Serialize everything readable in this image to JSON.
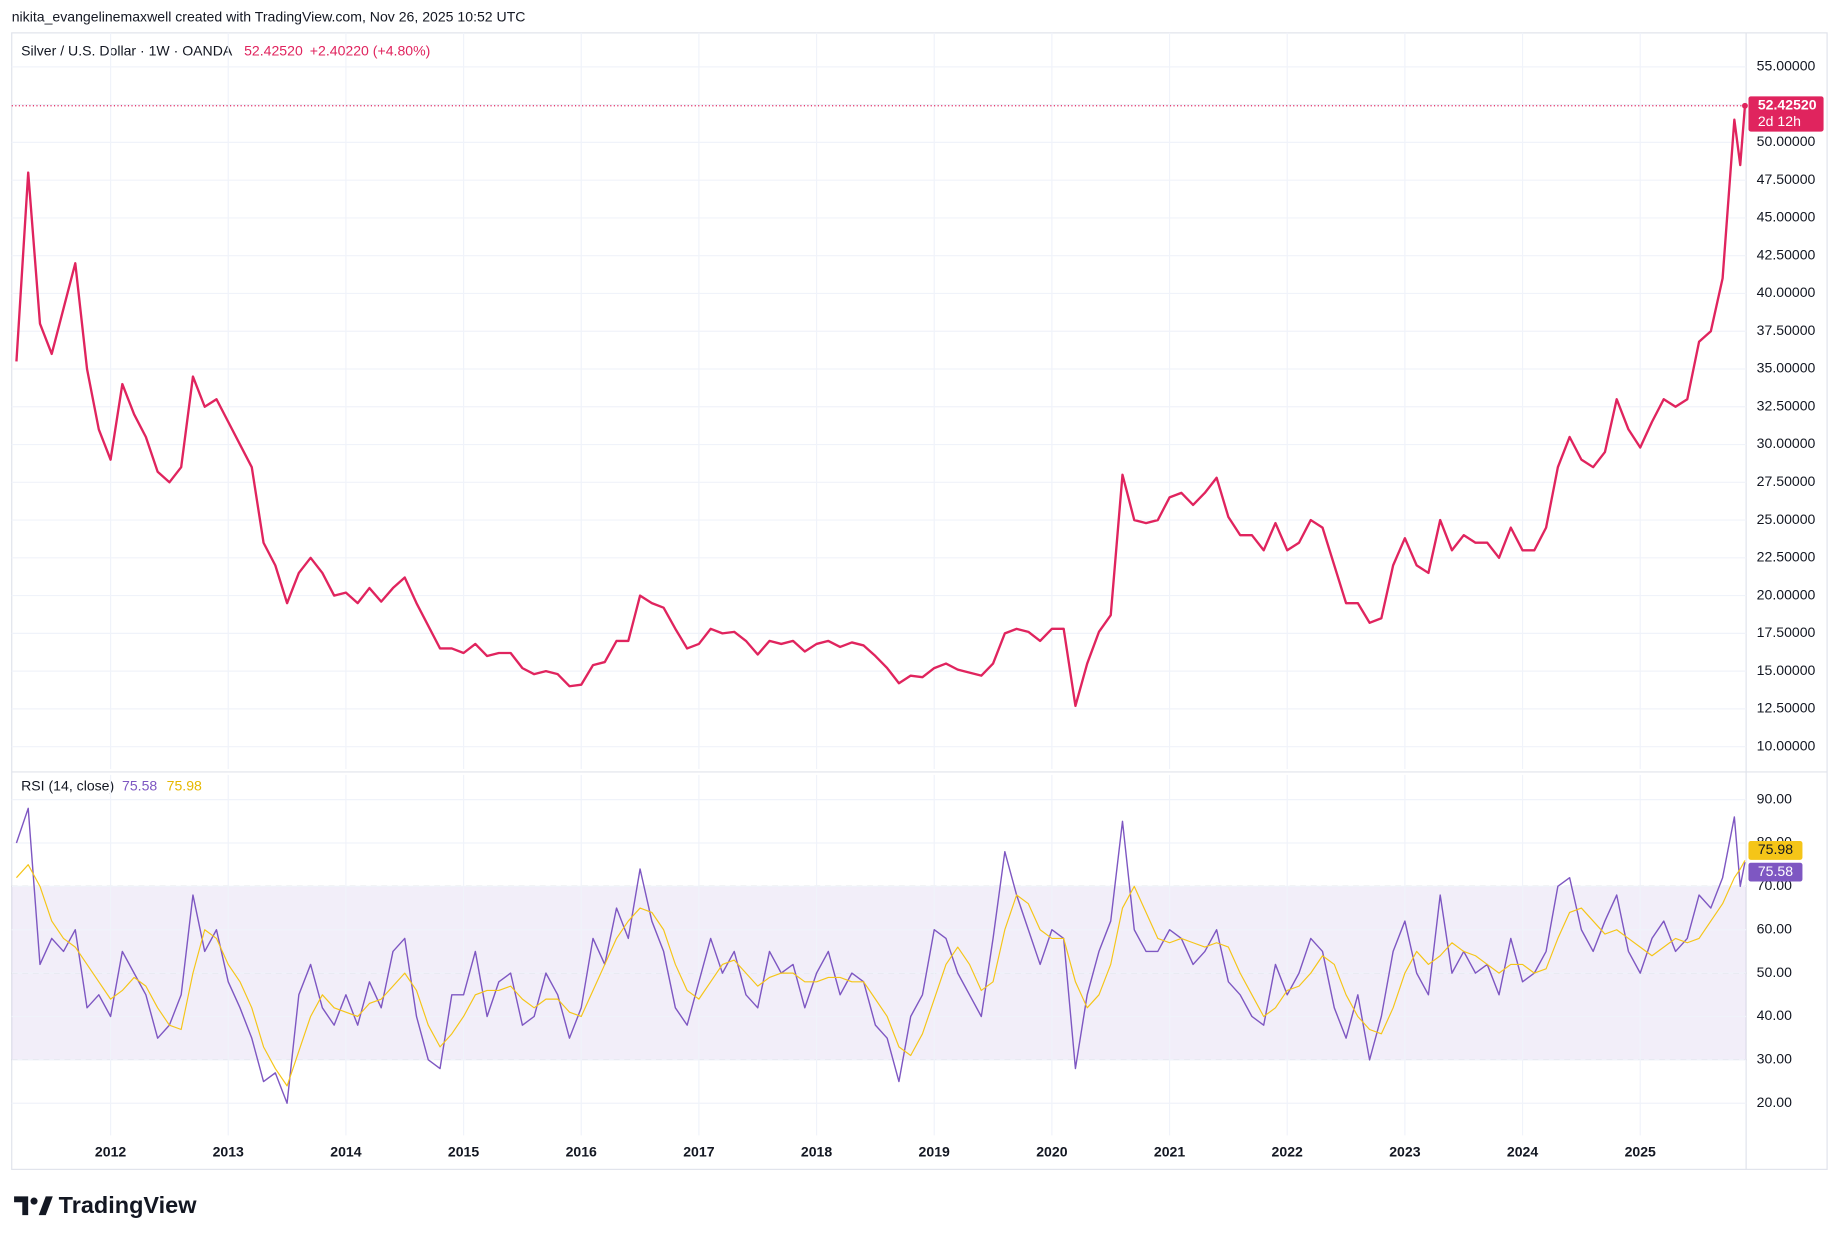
{
  "header": {
    "credit": "nikita_evangelinemaxwell created with TradingView.com, Nov 26, 2025 10:52 UTC"
  },
  "brand": "TradingView",
  "chart_data": [
    {
      "type": "line",
      "legend": {
        "symbol": "Silver / U.S. Dollar · 1W · OANDA",
        "change": "+2.40220 (+4.80%)"
      },
      "last_label": "52.42520",
      "countdown": "2d 12h",
      "x": [
        2011.2,
        2011.3,
        2011.4,
        2011.5,
        2011.6,
        2011.7,
        2011.8,
        2011.9,
        2012.0,
        2012.1,
        2012.2,
        2012.3,
        2012.4,
        2012.5,
        2012.6,
        2012.7,
        2012.8,
        2012.9,
        2013.0,
        2013.1,
        2013.2,
        2013.3,
        2013.4,
        2013.5,
        2013.6,
        2013.7,
        2013.8,
        2013.9,
        2014.0,
        2014.1,
        2014.2,
        2014.3,
        2014.4,
        2014.5,
        2014.6,
        2014.7,
        2014.8,
        2014.9,
        2015.0,
        2015.1,
        2015.2,
        2015.3,
        2015.4,
        2015.5,
        2015.6,
        2015.7,
        2015.8,
        2015.9,
        2016.0,
        2016.1,
        2016.2,
        2016.3,
        2016.4,
        2016.5,
        2016.6,
        2016.7,
        2016.8,
        2016.9,
        2017.0,
        2017.1,
        2017.2,
        2017.3,
        2017.4,
        2017.5,
        2017.6,
        2017.7,
        2017.8,
        2017.9,
        2018.0,
        2018.1,
        2018.2,
        2018.3,
        2018.4,
        2018.5,
        2018.6,
        2018.7,
        2018.8,
        2018.9,
        2019.0,
        2019.1,
        2019.2,
        2019.3,
        2019.4,
        2019.5,
        2019.6,
        2019.7,
        2019.8,
        2019.9,
        2020.0,
        2020.1,
        2020.2,
        2020.3,
        2020.4,
        2020.5,
        2020.6,
        2020.7,
        2020.8,
        2020.9,
        2021.0,
        2021.1,
        2021.2,
        2021.3,
        2021.4,
        2021.5,
        2021.6,
        2021.7,
        2021.8,
        2021.9,
        2022.0,
        2022.1,
        2022.2,
        2022.3,
        2022.4,
        2022.5,
        2022.6,
        2022.7,
        2022.8,
        2022.9,
        2023.0,
        2023.1,
        2023.2,
        2023.3,
        2023.4,
        2023.5,
        2023.6,
        2023.7,
        2023.8,
        2023.9,
        2024.0,
        2024.1,
        2024.2,
        2024.3,
        2024.4,
        2024.5,
        2024.6,
        2024.7,
        2024.8,
        2024.9,
        2025.0,
        2025.1,
        2025.2,
        2025.3,
        2025.4,
        2025.5,
        2025.6,
        2025.7,
        2025.8,
        2025.85,
        2025.89
      ],
      "series": [
        {
          "name": "Silver / U.S. Dollar",
          "color": "#e0245e",
          "values": [
            35.5,
            48,
            38,
            36,
            39,
            42,
            35,
            31,
            29,
            34,
            32,
            30.5,
            28.2,
            27.5,
            28.5,
            34.5,
            32.5,
            33,
            31.5,
            30,
            28.5,
            23.5,
            22,
            19.5,
            21.5,
            22.5,
            21.5,
            20,
            20.2,
            19.5,
            20.5,
            19.6,
            20.5,
            21.2,
            19.5,
            18,
            16.5,
            16.5,
            16.2,
            16.8,
            16,
            16.2,
            16.2,
            15.2,
            14.8,
            15,
            14.8,
            14,
            14.1,
            15.4,
            15.6,
            17,
            17,
            20,
            19.5,
            19.2,
            17.8,
            16.5,
            16.8,
            17.8,
            17.5,
            17.6,
            17,
            16.1,
            17,
            16.8,
            17,
            16.3,
            16.8,
            17,
            16.6,
            16.9,
            16.7,
            16,
            15.2,
            14.2,
            14.7,
            14.6,
            15.2,
            15.5,
            15.1,
            14.9,
            14.7,
            15.5,
            17.5,
            17.8,
            17.6,
            17,
            17.8,
            17.8,
            12.7,
            15.5,
            17.6,
            18.7,
            28,
            25,
            24.8,
            25,
            26.5,
            26.8,
            26,
            26.8,
            27.8,
            25.2,
            24,
            24,
            23,
            24.8,
            23,
            23.5,
            25,
            24.5,
            22,
            19.5,
            19.5,
            18.2,
            18.5,
            22,
            23.8,
            22,
            21.5,
            25,
            23,
            24,
            23.5,
            23.5,
            22.5,
            24.5,
            23,
            23,
            24.5,
            28.5,
            30.5,
            29,
            28.5,
            29.5,
            33,
            31,
            29.8,
            31.5,
            33,
            32.5,
            33,
            36.8,
            37.5,
            41,
            51.5,
            48.5,
            52.4252
          ]
        }
      ],
      "xlim": [
        2011.16,
        2025.9
      ],
      "xticks": [
        2012,
        2013,
        2014,
        2015,
        2016,
        2017,
        2018,
        2019,
        2020,
        2021,
        2022,
        2023,
        2024,
        2025
      ],
      "ylim": [
        8.52,
        57.25
      ],
      "yticks": [
        {
          "value": 10,
          "label": "10.00000"
        },
        {
          "value": 12.5,
          "label": "12.50000"
        },
        {
          "value": 15,
          "label": "15.00000"
        },
        {
          "value": 17.5,
          "label": "17.50000"
        },
        {
          "value": 20,
          "label": "20.00000"
        },
        {
          "value": 22.5,
          "label": "22.50000"
        },
        {
          "value": 25,
          "label": "25.00000"
        },
        {
          "value": 27.5,
          "label": "27.50000"
        },
        {
          "value": 30,
          "label": "30.00000"
        },
        {
          "value": 32.5,
          "label": "32.50000"
        },
        {
          "value": 35,
          "label": "35.00000"
        },
        {
          "value": 37.5,
          "label": "37.50000"
        },
        {
          "value": 40,
          "label": "40.00000"
        },
        {
          "value": 42.5,
          "label": "42.50000"
        },
        {
          "value": 45,
          "label": "45.00000"
        },
        {
          "value": 47.5,
          "label": "47.50000"
        },
        {
          "value": 50,
          "label": "50.00000"
        },
        {
          "value": 52.5,
          "label": "52.50000"
        },
        {
          "value": 55,
          "label": "55.00000"
        }
      ],
      "grid": true
    },
    {
      "type": "line",
      "legend": {
        "title": "RSI (14, close)"
      },
      "x": [
        2011.2,
        2011.3,
        2011.4,
        2011.5,
        2011.6,
        2011.7,
        2011.8,
        2011.9,
        2012.0,
        2012.1,
        2012.2,
        2012.3,
        2012.4,
        2012.5,
        2012.6,
        2012.7,
        2012.8,
        2012.9,
        2013.0,
        2013.1,
        2013.2,
        2013.3,
        2013.4,
        2013.5,
        2013.6,
        2013.7,
        2013.8,
        2013.9,
        2014.0,
        2014.1,
        2014.2,
        2014.3,
        2014.4,
        2014.5,
        2014.6,
        2014.7,
        2014.8,
        2014.9,
        2015.0,
        2015.1,
        2015.2,
        2015.3,
        2015.4,
        2015.5,
        2015.6,
        2015.7,
        2015.8,
        2015.9,
        2016.0,
        2016.1,
        2016.2,
        2016.3,
        2016.4,
        2016.5,
        2016.6,
        2016.7,
        2016.8,
        2016.9,
        2017.0,
        2017.1,
        2017.2,
        2017.3,
        2017.4,
        2017.5,
        2017.6,
        2017.7,
        2017.8,
        2017.9,
        2018.0,
        2018.1,
        2018.2,
        2018.3,
        2018.4,
        2018.5,
        2018.6,
        2018.7,
        2018.8,
        2018.9,
        2019.0,
        2019.1,
        2019.2,
        2019.3,
        2019.4,
        2019.5,
        2019.6,
        2019.7,
        2019.8,
        2019.9,
        2020.0,
        2020.1,
        2020.2,
        2020.3,
        2020.4,
        2020.5,
        2020.6,
        2020.7,
        2020.8,
        2020.9,
        2021.0,
        2021.1,
        2021.2,
        2021.3,
        2021.4,
        2021.5,
        2021.6,
        2021.7,
        2021.8,
        2021.9,
        2022.0,
        2022.1,
        2022.2,
        2022.3,
        2022.4,
        2022.5,
        2022.6,
        2022.7,
        2022.8,
        2022.9,
        2023.0,
        2023.1,
        2023.2,
        2023.3,
        2023.4,
        2023.5,
        2023.6,
        2023.7,
        2023.8,
        2023.9,
        2024.0,
        2024.1,
        2024.2,
        2024.3,
        2024.4,
        2024.5,
        2024.6,
        2024.7,
        2024.8,
        2024.9,
        2025.0,
        2025.1,
        2025.2,
        2025.3,
        2025.4,
        2025.5,
        2025.6,
        2025.7,
        2025.8,
        2025.85,
        2025.89
      ],
      "series": [
        {
          "name": "RSI",
          "color": "#7e57c2",
          "last_label": "75.58",
          "values": [
            80,
            88,
            52,
            58,
            55,
            60,
            42,
            45,
            40,
            55,
            50,
            45,
            35,
            38,
            45,
            68,
            55,
            60,
            48,
            42,
            35,
            25,
            27,
            20,
            45,
            52,
            42,
            38,
            45,
            38,
            48,
            42,
            55,
            58,
            40,
            30,
            28,
            45,
            45,
            55,
            40,
            48,
            50,
            38,
            40,
            50,
            45,
            35,
            42,
            58,
            52,
            65,
            58,
            74,
            62,
            55,
            42,
            38,
            48,
            58,
            50,
            55,
            45,
            42,
            55,
            50,
            52,
            42,
            50,
            55,
            45,
            50,
            48,
            38,
            35,
            25,
            40,
            45,
            60,
            58,
            50,
            45,
            40,
            58,
            78,
            68,
            60,
            52,
            60,
            58,
            28,
            45,
            55,
            62,
            85,
            60,
            55,
            55,
            60,
            58,
            52,
            55,
            60,
            48,
            45,
            40,
            38,
            52,
            45,
            50,
            58,
            55,
            42,
            35,
            45,
            30,
            40,
            55,
            62,
            50,
            45,
            68,
            50,
            55,
            50,
            52,
            45,
            58,
            48,
            50,
            55,
            70,
            72,
            60,
            55,
            62,
            68,
            55,
            50,
            58,
            62,
            55,
            58,
            68,
            65,
            72,
            86,
            70,
            75.58
          ]
        },
        {
          "name": "RSI-based MA",
          "color": "#f5c518",
          "last_label": "75.98",
          "values": [
            72,
            75,
            70,
            62,
            58,
            56,
            52,
            48,
            44,
            46,
            49,
            47,
            42,
            38,
            37,
            50,
            60,
            58,
            52,
            48,
            42,
            33,
            28,
            24,
            32,
            40,
            45,
            42,
            41,
            40,
            43,
            44,
            47,
            50,
            46,
            38,
            33,
            36,
            40,
            45,
            46,
            46,
            47,
            44,
            42,
            44,
            44,
            41,
            40,
            46,
            52,
            58,
            62,
            65,
            64,
            60,
            52,
            46,
            44,
            48,
            52,
            53,
            50,
            47,
            49,
            50,
            50,
            48,
            48,
            49,
            49,
            48,
            48,
            44,
            40,
            33,
            31,
            36,
            44,
            52,
            56,
            52,
            46,
            48,
            60,
            68,
            66,
            60,
            58,
            58,
            48,
            42,
            45,
            52,
            65,
            70,
            64,
            58,
            57,
            58,
            57,
            56,
            57,
            56,
            50,
            45,
            40,
            42,
            46,
            47,
            50,
            54,
            52,
            45,
            40,
            37,
            36,
            42,
            50,
            55,
            52,
            54,
            57,
            55,
            54,
            52,
            50,
            52,
            52,
            50,
            51,
            58,
            64,
            65,
            62,
            59,
            60,
            58,
            56,
            54,
            56,
            58,
            57,
            58,
            62,
            66,
            72,
            74,
            75.98
          ]
        }
      ],
      "xlim": [
        2011.16,
        2025.9
      ],
      "xticks": [
        2012,
        2013,
        2014,
        2015,
        2016,
        2017,
        2018,
        2019,
        2020,
        2021,
        2022,
        2023,
        2024,
        2025
      ],
      "ylim": [
        12.6,
        95.7
      ],
      "yticks": [
        {
          "value": 20,
          "label": "20.00"
        },
        {
          "value": 30,
          "label": "30.00"
        },
        {
          "value": 40,
          "label": "40.00"
        },
        {
          "value": 50,
          "label": "50.00"
        },
        {
          "value": 60,
          "label": "60.00"
        },
        {
          "value": 70,
          "label": "70.00"
        },
        {
          "value": 80,
          "label": "80.00"
        },
        {
          "value": 90,
          "label": "90.00"
        }
      ],
      "bands": {
        "lower": 30,
        "middle": 50,
        "upper": 70
      },
      "grid": true
    }
  ]
}
